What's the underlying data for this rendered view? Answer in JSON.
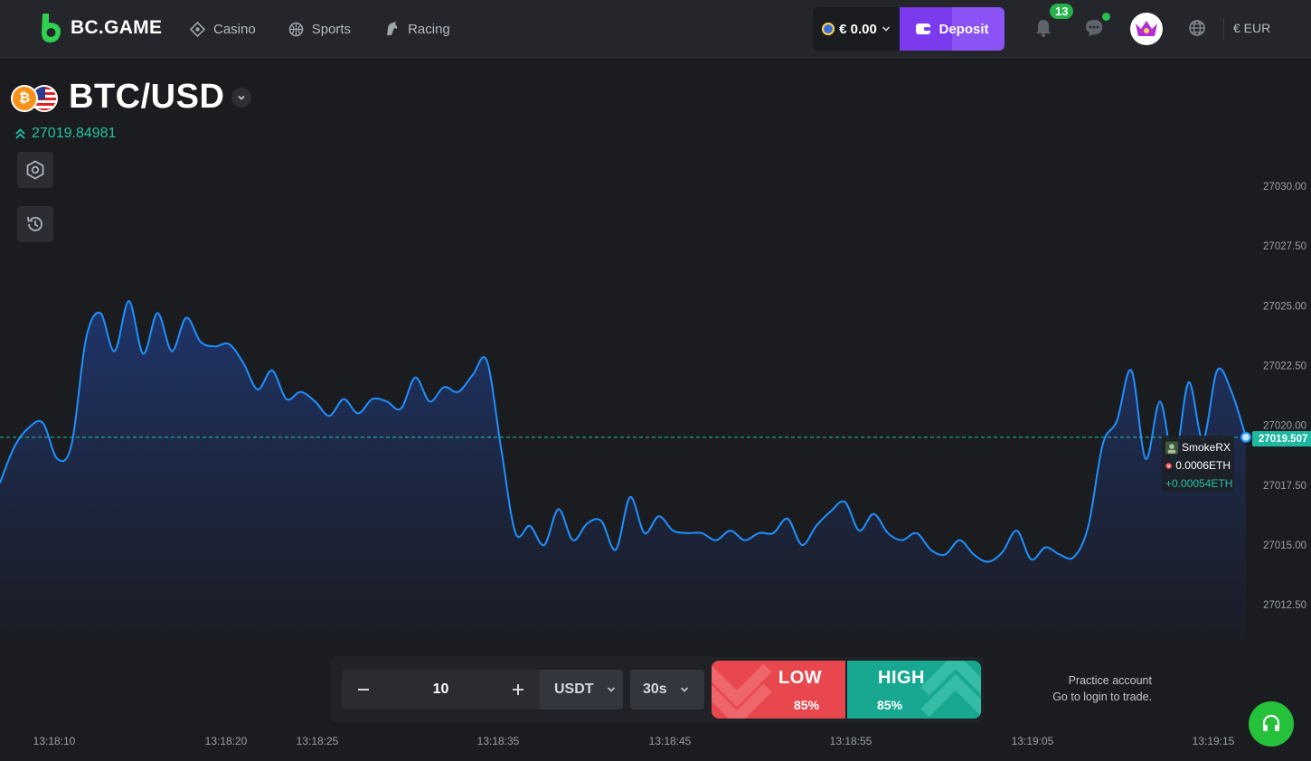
{
  "header": {
    "brand": "BC.GAME",
    "nav": [
      {
        "label": "Casino",
        "icon": "casino-icon"
      },
      {
        "label": "Sports",
        "icon": "sports-icon"
      },
      {
        "label": "Racing",
        "icon": "racing-icon"
      }
    ],
    "balance": "€ 0.00",
    "deposit_label": "Deposit",
    "notifications_count": "13",
    "currency": "€ EUR"
  },
  "pair": {
    "symbol": "BTC/USD",
    "coin_glyph": "₿",
    "price": "27019.84981"
  },
  "chart_data": {
    "type": "area",
    "y_ticks": [
      "27030.00",
      "27027.50",
      "27025.00",
      "27022.50",
      "27020.00",
      "27017.50",
      "27015.00",
      "27012.50"
    ],
    "x_ticks": [
      "13:18:10",
      "13:18:20",
      "13:18:25",
      "13:18:35",
      "13:18:45",
      "13:18:55",
      "13:19:05",
      "13:19:15"
    ],
    "ylim": [
      27011,
      27030
    ],
    "current_price": "27019.507",
    "line_color": "#1e90ff",
    "series": [
      {
        "values": [
          27017.6,
          27019.1,
          27019.9,
          27020.1,
          27018.6,
          27019.2,
          27023.6,
          27024.7,
          27023.1,
          27025.2,
          27023.0,
          27024.7,
          27023.1,
          27024.5,
          27023.5,
          27023.3,
          27023.4,
          27022.6,
          27021.5,
          27022.3,
          27021.1,
          27021.4,
          27021.0,
          27020.4,
          27021.1,
          27020.5,
          27021.1,
          27021.0,
          27020.7,
          27022.0,
          27021.0,
          27021.6,
          27021.4,
          27022.1,
          27022.7,
          27019.0,
          27015.5,
          27015.8,
          27015.0,
          27016.5,
          27015.2,
          27015.9,
          27016.0,
          27014.8,
          27017.0,
          27015.5,
          27016.2,
          27015.6,
          27015.5,
          27015.5,
          27015.2,
          27015.6,
          27015.2,
          27015.5,
          27015.5,
          27016.1,
          27015.0,
          27015.8,
          27016.4,
          27016.8,
          27015.6,
          27016.3,
          27015.5,
          27015.2,
          27015.5,
          27014.8,
          27014.6,
          27015.2,
          27014.6,
          27014.3,
          27014.7,
          27015.6,
          27014.4,
          27014.9,
          27014.6,
          27014.5,
          27015.8,
          27019.2,
          27020.2,
          27022.3,
          27018.6,
          27021.0,
          27018.5,
          27021.8,
          27019.4,
          27022.3,
          27021.4,
          27019.5
        ]
      }
    ]
  },
  "trade_marker": {
    "user": "SmokeRX",
    "amount": "0.0006ETH",
    "profit": "+0.00054ETH"
  },
  "trade_panel": {
    "amount_value": "10",
    "currency": "USDT",
    "duration": "30s",
    "low_label": "LOW",
    "low_pct": "85%",
    "high_label": "HIGH",
    "high_pct": "85%",
    "practice_line1": "Practice account",
    "practice_line2": "Go to login to trade."
  },
  "colors": {
    "accent_purple": "#7c3aed",
    "up_green": "#18a892",
    "down_red": "#e9474e",
    "line_blue": "#1e90ff"
  }
}
